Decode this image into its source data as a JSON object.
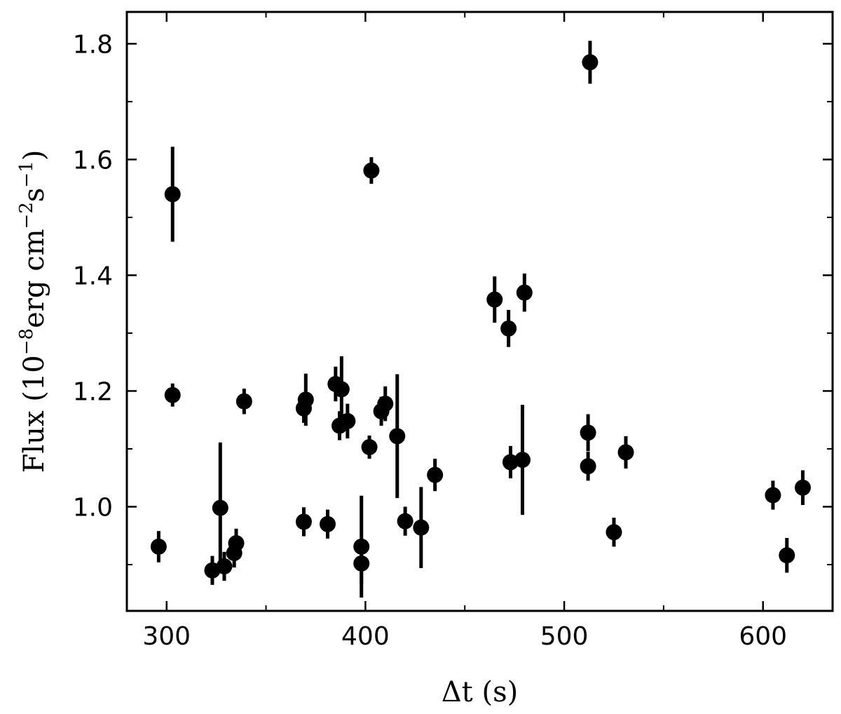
{
  "chart_data": {
    "type": "scatter",
    "title": "",
    "xlabel": "Δt (s)",
    "ylabel": {
      "prefix": "Flux (10",
      "exp1": "−8",
      "mid1": "erg cm",
      "exp2": "−2",
      "mid2": "s",
      "exp3": "−1",
      "suffix": ")"
    },
    "xlim": [
      280,
      635
    ],
    "ylim": [
      0.82,
      1.855
    ],
    "x_ticks": [
      300,
      400,
      500,
      600
    ],
    "x_ticks_minor": [
      350,
      450,
      550
    ],
    "y_ticks": [
      1.0,
      1.2,
      1.4,
      1.6,
      1.8
    ],
    "y_ticks_minor": [
      0.9,
      1.1,
      1.3,
      1.5,
      1.7
    ],
    "grid": false,
    "legend": "none",
    "marker_color": "#000000",
    "series": [
      {
        "points": [
          {
            "x": 296,
            "y": 0.931,
            "yerr": 0.027
          },
          {
            "x": 303,
            "y": 1.54,
            "yerr": 0.082
          },
          {
            "x": 303,
            "y": 1.193,
            "yerr": 0.02
          },
          {
            "x": 323,
            "y": 0.89,
            "yerr": 0.025
          },
          {
            "x": 327,
            "y": 0.998,
            "yerr": 0.113
          },
          {
            "x": 329,
            "y": 0.897,
            "yerr": 0.025
          },
          {
            "x": 334,
            "y": 0.92,
            "yerr": 0.025
          },
          {
            "x": 335,
            "y": 0.937,
            "yerr": 0.025
          },
          {
            "x": 339,
            "y": 1.182,
            "yerr": 0.022
          },
          {
            "x": 369,
            "y": 0.974,
            "yerr": 0.025
          },
          {
            "x": 369,
            "y": 1.17,
            "yerr": 0.025
          },
          {
            "x": 370,
            "y": 1.185,
            "yerr": 0.045
          },
          {
            "x": 381,
            "y": 0.97,
            "yerr": 0.025
          },
          {
            "x": 385,
            "y": 1.212,
            "yerr": 0.03
          },
          {
            "x": 387,
            "y": 1.14,
            "yerr": 0.025
          },
          {
            "x": 388,
            "y": 1.203,
            "yerr": 0.057
          },
          {
            "x": 391,
            "y": 1.148,
            "yerr": 0.03
          },
          {
            "x": 398,
            "y": 0.931,
            "yerr": 0.088
          },
          {
            "x": 398,
            "y": 0.902,
            "yerr": 0.035
          },
          {
            "x": 402,
            "y": 1.103,
            "yerr": 0.02
          },
          {
            "x": 403,
            "y": 1.581,
            "yerr": 0.023
          },
          {
            "x": 408,
            "y": 1.165,
            "yerr": 0.025
          },
          {
            "x": 410,
            "y": 1.178,
            "yerr": 0.03
          },
          {
            "x": 416,
            "y": 1.122,
            "yerr": 0.107
          },
          {
            "x": 420,
            "y": 0.975,
            "yerr": 0.025
          },
          {
            "x": 428,
            "y": 0.964,
            "yerr": 0.07
          },
          {
            "x": 435,
            "y": 1.055,
            "yerr": 0.028
          },
          {
            "x": 465,
            "y": 1.358,
            "yerr": 0.04
          },
          {
            "x": 472,
            "y": 1.308,
            "yerr": 0.032
          },
          {
            "x": 473,
            "y": 1.077,
            "yerr": 0.028
          },
          {
            "x": 479,
            "y": 1.081,
            "yerr": 0.095
          },
          {
            "x": 480,
            "y": 1.37,
            "yerr": 0.033
          },
          {
            "x": 512,
            "y": 1.128,
            "yerr": 0.032
          },
          {
            "x": 512,
            "y": 1.07,
            "yerr": 0.025
          },
          {
            "x": 513,
            "y": 1.768,
            "yerr": 0.037
          },
          {
            "x": 525,
            "y": 0.956,
            "yerr": 0.025
          },
          {
            "x": 531,
            "y": 1.094,
            "yerr": 0.028
          },
          {
            "x": 605,
            "y": 1.02,
            "yerr": 0.025
          },
          {
            "x": 612,
            "y": 0.916,
            "yerr": 0.03
          },
          {
            "x": 620,
            "y": 1.033,
            "yerr": 0.03
          }
        ]
      }
    ]
  }
}
